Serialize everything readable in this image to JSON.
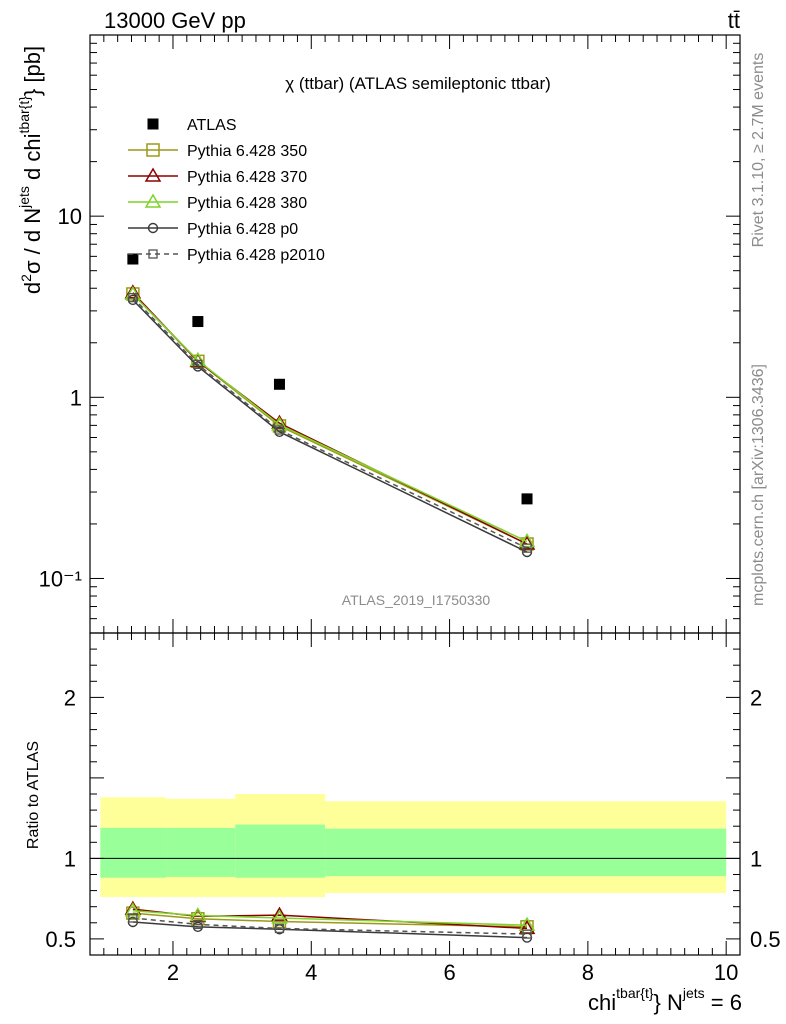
{
  "header": {
    "left": "13000 GeV pp",
    "right": "tt̄"
  },
  "side_labels": {
    "rivet": "Rivet 3.1.10, ≥ 2.7M events",
    "mcplots": "mcplots.cern.ch [arXiv:1306.3436]"
  },
  "chart_data": [
    {
      "type": "line",
      "panel": "main",
      "title": "χ (ttbar) (ATLAS semileptonic ttbar)",
      "watermark": "ATLAS_2019_I1750330",
      "ylabel": "d²σ / d N^jets d chi^tbar{t} [pb]",
      "yscale": "log",
      "ylim": [
        0.05,
        100
      ],
      "xlim": [
        0.8,
        10.2
      ],
      "y_ticks": [
        {
          "v": 0.1,
          "label": "10⁻¹"
        },
        {
          "v": 1,
          "label": "1"
        },
        {
          "v": 10,
          "label": "10"
        }
      ],
      "legend_position": "top-left",
      "series": [
        {
          "name": "ATLAS",
          "color": "#000000",
          "marker": "filled-square",
          "line": "none",
          "x": [
            1.42,
            2.36,
            3.54,
            7.12
          ],
          "y": [
            5.8,
            2.62,
            1.18,
            0.275
          ]
        },
        {
          "name": "Pythia 6.428 350",
          "color": "#9a9a1a",
          "marker": "open-square",
          "line": "solid",
          "x": [
            1.42,
            2.36,
            3.54,
            7.12
          ],
          "y": [
            3.72,
            1.58,
            0.695,
            0.155
          ]
        },
        {
          "name": "Pythia 6.428 370",
          "color": "#8b0000",
          "marker": "open-triangle",
          "line": "solid",
          "x": [
            1.42,
            2.36,
            3.54,
            7.12
          ],
          "y": [
            3.78,
            1.58,
            0.72,
            0.155
          ]
        },
        {
          "name": "Pythia 6.428 380",
          "color": "#7fd32a",
          "marker": "open-triangle",
          "line": "solid",
          "x": [
            1.42,
            2.36,
            3.54,
            7.12
          ],
          "y": [
            3.7,
            1.6,
            0.705,
            0.16
          ]
        },
        {
          "name": "Pythia 6.428 p0",
          "color": "#3a3a3a",
          "marker": "open-circle",
          "line": "solid",
          "x": [
            1.42,
            2.36,
            3.54,
            7.12
          ],
          "y": [
            3.45,
            1.48,
            0.645,
            0.14
          ]
        },
        {
          "name": "Pythia 6.428 p2010",
          "color": "#555555",
          "marker": "open-square-small",
          "line": "dashed",
          "x": [
            1.42,
            2.36,
            3.54,
            7.12
          ],
          "y": [
            3.55,
            1.52,
            0.66,
            0.147
          ]
        }
      ]
    },
    {
      "type": "line",
      "panel": "ratio",
      "ylabel": "Ratio to ATLAS",
      "xlabel": "chi^tbar{t} N^jets = 6",
      "ylim": [
        0.4,
        2.4
      ],
      "xlim": [
        0.8,
        10.2
      ],
      "x_ticks": [
        2,
        4,
        6,
        8,
        10
      ],
      "y_ticks": [
        0.5,
        1,
        2
      ],
      "bands": [
        {
          "x0": 0.95,
          "x1": 1.9,
          "yellow": [
            0.76,
            1.38
          ],
          "green": [
            0.88,
            1.19
          ]
        },
        {
          "x0": 1.9,
          "x1": 2.9,
          "yellow": [
            0.76,
            1.37
          ],
          "green": [
            0.885,
            1.19
          ]
        },
        {
          "x0": 2.9,
          "x1": 4.2,
          "yellow": [
            0.76,
            1.4
          ],
          "green": [
            0.88,
            1.21
          ]
        },
        {
          "x0": 4.2,
          "x1": 10.0,
          "yellow": [
            0.785,
            1.355
          ],
          "green": [
            0.89,
            1.185
          ]
        }
      ],
      "band_colors": {
        "yellow": "#ffff99",
        "green": "#99ff99"
      },
      "series": [
        {
          "name": "Pythia 6.428 350",
          "color": "#9a9a1a",
          "marker": "open-square",
          "line": "solid",
          "x": [
            1.42,
            2.36,
            3.54,
            7.12
          ],
          "y": [
            0.66,
            0.625,
            0.608,
            0.575
          ]
        },
        {
          "name": "Pythia 6.428 370",
          "color": "#8b0000",
          "marker": "open-triangle",
          "line": "solid",
          "x": [
            1.42,
            2.36,
            3.54,
            7.12
          ],
          "y": [
            0.685,
            0.64,
            0.648,
            0.565
          ]
        },
        {
          "name": "Pythia 6.428 380",
          "color": "#7fd32a",
          "marker": "open-triangle",
          "line": "solid",
          "x": [
            1.42,
            2.36,
            3.54,
            7.12
          ],
          "y": [
            0.675,
            0.645,
            0.63,
            0.585
          ]
        },
        {
          "name": "Pythia 6.428 p0",
          "color": "#3a3a3a",
          "marker": "open-circle",
          "line": "solid",
          "x": [
            1.42,
            2.36,
            3.54,
            7.12
          ],
          "y": [
            0.605,
            0.575,
            0.56,
            0.508
          ]
        },
        {
          "name": "Pythia 6.428 p2010",
          "color": "#555555",
          "marker": "open-square-small",
          "line": "dashed",
          "x": [
            1.42,
            2.36,
            3.54,
            7.12
          ],
          "y": [
            0.63,
            0.59,
            0.565,
            0.53
          ]
        }
      ]
    }
  ]
}
